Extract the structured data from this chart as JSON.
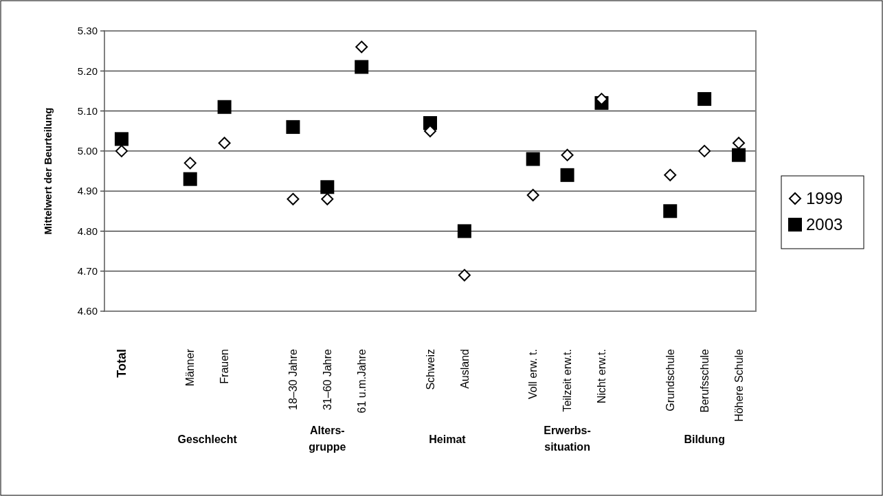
{
  "chart_data": {
    "type": "scatter",
    "ylabel": "Mittelwert der Beurteilung",
    "categories": [
      "Total",
      null,
      "Männer",
      "Frauen",
      null,
      "18–30 Jahre",
      "31–60 Jahre",
      "61 u.m.Jahre",
      null,
      "Schweiz",
      "Ausland",
      null,
      "Voll erw. t.",
      "Teilzeit erw.t.",
      "Nicht erw.t.",
      null,
      "Grundschule",
      "Berufsschule",
      "Höhere Schule"
    ],
    "series": [
      {
        "name": "1999",
        "color": "#000000",
        "marker": "diamond",
        "values": [
          5.0,
          null,
          4.97,
          5.02,
          null,
          4.88,
          4.88,
          5.26,
          null,
          5.05,
          4.69,
          null,
          4.89,
          4.99,
          5.13,
          null,
          4.94,
          5.0,
          5.02
        ]
      },
      {
        "name": "2003",
        "color": "#000000",
        "marker": "square",
        "values": [
          5.03,
          null,
          4.93,
          5.11,
          null,
          5.06,
          4.91,
          5.21,
          null,
          5.07,
          4.8,
          null,
          4.98,
          4.94,
          5.12,
          null,
          4.85,
          5.13,
          4.99
        ]
      }
    ],
    "annotations": [
      "Geschlecht",
      "Alters-\ngruppe",
      "Heimat",
      "Erwerbs-\nsituation",
      "Bildung"
    ],
    "ylim": [
      4.6,
      5.3
    ],
    "yticks": [
      {
        "value": 4.6,
        "label": "4.60"
      },
      {
        "value": 4.7,
        "label": "4.70"
      },
      {
        "value": 4.8,
        "label": "4.80"
      },
      {
        "value": 4.9,
        "label": "4.90"
      },
      {
        "value": 5.0,
        "label": "5.00"
      },
      {
        "value": 5.1,
        "label": "5.10"
      },
      {
        "value": 5.2,
        "label": "5.20"
      },
      {
        "value": 5.3,
        "label": "5.30"
      }
    ],
    "grid": "y",
    "legend": "right"
  }
}
